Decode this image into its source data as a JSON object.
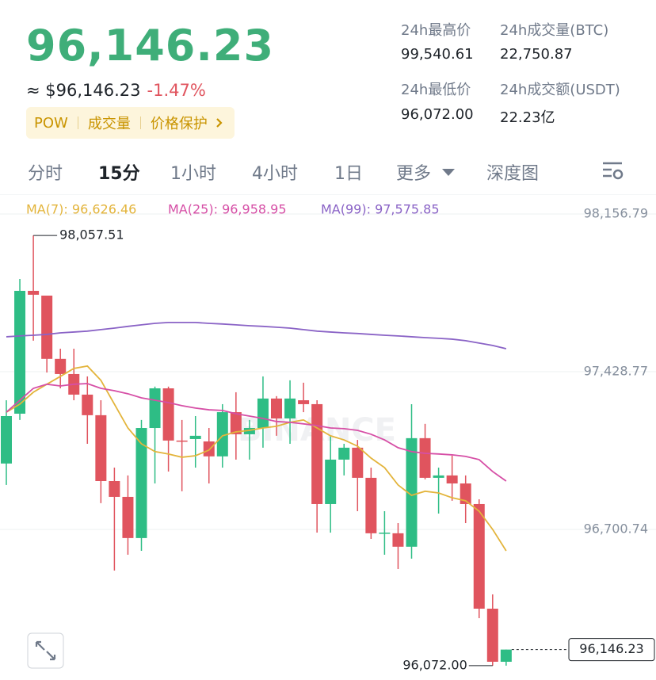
{
  "header": {
    "price": "96,146.23",
    "approx": "≈ $96,146.23",
    "change": "-1.47%",
    "tags": [
      "POW",
      "成交量",
      "价格保护"
    ],
    "stats": [
      {
        "label": "24h最高价",
        "value": "99,540.61"
      },
      {
        "label": "24h成交量(BTC)",
        "value": "22,750.87"
      },
      {
        "label": "24h最低价",
        "value": "96,072.00"
      },
      {
        "label": "24h成交额(USDT)",
        "value": "22.23亿"
      }
    ]
  },
  "tabs": [
    "分时",
    "15分",
    "1小时",
    "4小时",
    "1日",
    "更多",
    "深度图"
  ],
  "chart_data": {
    "type": "candlestick",
    "watermark": "BINANCE",
    "up_color": "#2ebd85",
    "down_color": "#e0545e",
    "grid": true,
    "ylim": [
      96005.8,
      98248.2
    ],
    "yticks": [
      {
        "value": 98156.79,
        "label": "98,156.79"
      },
      {
        "value": 97428.77,
        "label": "97,428.77"
      },
      {
        "value": 96700.74,
        "label": "96,700.74"
      }
    ],
    "open": [
      97005,
      97235,
      97802,
      97780,
      97488,
      97418,
      97323,
      97228,
      96924,
      96851,
      96661,
      97169,
      97352,
      97111,
      97118,
      97107,
      97038,
      97242,
      97140,
      97169,
      97305,
      97213,
      97297,
      97279,
      96818,
      97023,
      97078,
      96939,
      96683,
      96683,
      96621,
      97122,
      96939,
      96950,
      96913,
      96818,
      96335,
      96090
    ],
    "high": [
      97297,
      97857,
      98057.51,
      97780,
      97535,
      97535,
      97407,
      97297,
      96986,
      96950,
      97206,
      97360,
      97360,
      97206,
      97224,
      97169,
      97279,
      97334,
      97206,
      97407,
      97316,
      97389,
      97378,
      97297,
      97133,
      97096,
      97114,
      96986,
      96785,
      96730,
      97279,
      97188,
      96986,
      97041,
      96950,
      96840,
      96401,
      96146.23
    ],
    "low": [
      96906,
      97206,
      97572,
      97425,
      97352,
      97297,
      97096,
      96822,
      96511,
      96584,
      96602,
      96913,
      96968,
      96877,
      96986,
      96913,
      96986,
      97023,
      97023,
      97078,
      97133,
      97096,
      97242,
      96686,
      96686,
      96950,
      96785,
      96657,
      96584,
      96518,
      96566,
      96932,
      96774,
      96833,
      96730,
      96291,
      96072,
      96072
    ],
    "close": [
      97224,
      97802,
      97784,
      97488,
      97418,
      97323,
      97228,
      96924,
      96851,
      96661,
      97169,
      97352,
      97111,
      97107,
      97133,
      97038,
      97242,
      97140,
      97169,
      97305,
      97213,
      97305,
      97279,
      96818,
      97023,
      97078,
      96939,
      96683,
      96686,
      96621,
      97122,
      96939,
      96950,
      96913,
      96818,
      96335,
      96090,
      96146.23
    ],
    "series": [
      {
        "name": "MA(7): 96,626.46",
        "color": "#e3b43b",
        "values": [
          97242,
          97279,
          97334,
          97371,
          97407,
          97444,
          97455,
          97389,
          97279,
          97169,
          97096,
          97060,
          97049,
          97034,
          97041,
          97067,
          97133,
          97151,
          97158,
          97169,
          97177,
          97195,
          97206,
          97169,
          97133,
          97114,
          97085,
          97030,
          96986,
          96906,
          96858,
          96877,
          96869,
          96847,
          96833,
          96785,
          96701,
          96602
        ]
      },
      {
        "name": "MA(25): 96,958.95",
        "color": "#d64fa6",
        "values": [
          97242,
          97297,
          97352,
          97371,
          97363,
          97371,
          97374,
          97352,
          97341,
          97327,
          97308,
          97297,
          97286,
          97272,
          97261,
          97253,
          97250,
          97235,
          97224,
          97213,
          97199,
          97195,
          97188,
          97180,
          97169,
          97166,
          97158,
          97140,
          97114,
          97078,
          97060,
          97052,
          97049,
          97045,
          97038,
          97023,
          96968,
          96924
        ]
      },
      {
        "name": "MA(99): 97,575.85",
        "color": "#8a63c6",
        "values": [
          97590,
          97594,
          97597,
          97601,
          97608,
          97612,
          97616,
          97623,
          97630,
          97638,
          97645,
          97652,
          97656,
          97656,
          97656,
          97652,
          97649,
          97645,
          97641,
          97638,
          97634,
          97630,
          97623,
          97616,
          97612,
          97608,
          97605,
          97601,
          97597,
          97594,
          97590,
          97586,
          97583,
          97579,
          97572,
          97561,
          97550,
          97535
        ]
      }
    ],
    "high_label": "98,057.51",
    "low_label": "96,072.00",
    "last_label": "96,146.23"
  }
}
